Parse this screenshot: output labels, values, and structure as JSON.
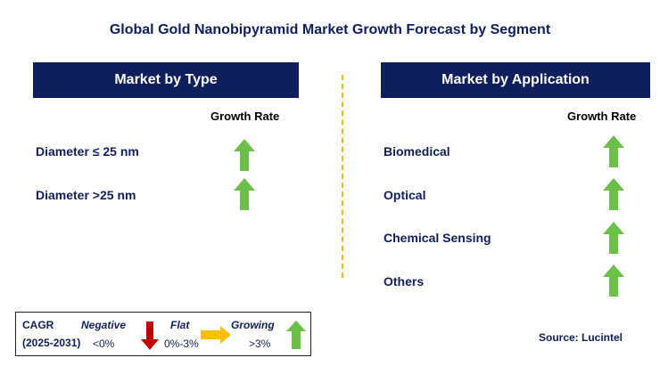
{
  "title": "Global Gold Nanobipyramid Market Growth Forecast by Segment",
  "left_panel": {
    "header": "Market by Type",
    "column_header": "Growth Rate",
    "rows": [
      {
        "label": "Diameter ≤ 25 nm",
        "trend": "growing"
      },
      {
        "label": "Diameter >25 nm",
        "trend": "growing"
      }
    ]
  },
  "right_panel": {
    "header": "Market by Application",
    "column_header": "Growth Rate",
    "rows": [
      {
        "label": "Biomedical",
        "trend": "growing"
      },
      {
        "label": "Optical",
        "trend": "growing"
      },
      {
        "label": "Chemical Sensing",
        "trend": "growing"
      },
      {
        "label": "Others",
        "trend": "growing"
      }
    ]
  },
  "legend": {
    "cagr_label": "CAGR",
    "period": "(2025-2031)",
    "negative_label": "Negative",
    "negative_range": "<0%",
    "flat_label": "Flat",
    "flat_range": "0%-3%",
    "growing_label": "Growing",
    "growing_range": ">3%"
  },
  "source": "Source: Lucintel",
  "colors": {
    "navy": "#0f1f5c",
    "growing_green": "#6cc04a",
    "negative_red": "#c00000",
    "flat_yellow": "#ffc000",
    "divider": "#f5b800"
  },
  "icons": {
    "growing": "up-arrow-icon",
    "negative": "down-arrow-icon",
    "flat": "right-arrow-icon"
  }
}
